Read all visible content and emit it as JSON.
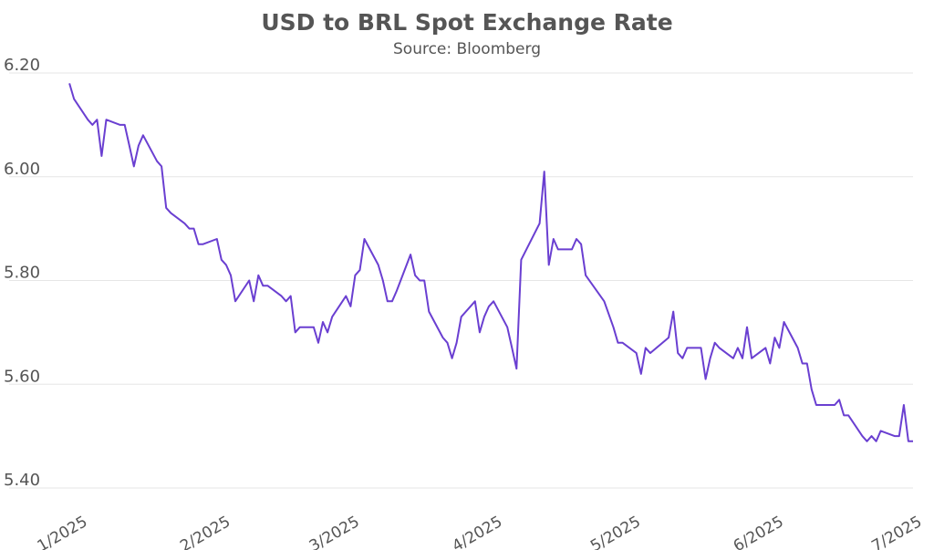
{
  "chart_data": {
    "type": "line",
    "title": "USD to BRL Spot Exchange Rate",
    "subtitle": "Source: Bloomberg",
    "xlabel": "",
    "ylabel": "",
    "ylim": [
      5.4,
      6.2
    ],
    "xlim": [
      "2025-01-01",
      "2025-07-04"
    ],
    "yticks": [
      "6.20",
      "6.00",
      "5.80",
      "5.60",
      "5.40"
    ],
    "xticks": [
      {
        "date": "2025-01-01",
        "label": "1/2025"
      },
      {
        "date": "2025-02-01",
        "label": "2/2025"
      },
      {
        "date": "2025-03-01",
        "label": "3/2025"
      },
      {
        "date": "2025-04-01",
        "label": "4/2025"
      },
      {
        "date": "2025-05-01",
        "label": "5/2025"
      },
      {
        "date": "2025-06-01",
        "label": "6/2025"
      },
      {
        "date": "2025-07-01",
        "label": "7/2025"
      }
    ],
    "grid": "horizontal",
    "line_color": "#6a3fd1",
    "series": [
      {
        "points": [
          [
            "2025-01-02",
            6.18
          ],
          [
            "2025-01-03",
            6.15
          ],
          [
            "2025-01-06",
            6.11
          ],
          [
            "2025-01-07",
            6.1
          ],
          [
            "2025-01-08",
            6.11
          ],
          [
            "2025-01-09",
            6.04
          ],
          [
            "2025-01-10",
            6.11
          ],
          [
            "2025-01-13",
            6.1
          ],
          [
            "2025-01-14",
            6.1
          ],
          [
            "2025-01-15",
            6.06
          ],
          [
            "2025-01-16",
            6.02
          ],
          [
            "2025-01-17",
            6.06
          ],
          [
            "2025-01-18",
            6.08
          ],
          [
            "2025-01-21",
            6.03
          ],
          [
            "2025-01-22",
            6.02
          ],
          [
            "2025-01-23",
            5.94
          ],
          [
            "2025-01-24",
            5.93
          ],
          [
            "2025-01-27",
            5.91
          ],
          [
            "2025-01-28",
            5.9
          ],
          [
            "2025-01-29",
            5.9
          ],
          [
            "2025-01-30",
            5.87
          ],
          [
            "2025-01-31",
            5.87
          ],
          [
            "2025-02-03",
            5.88
          ],
          [
            "2025-02-04",
            5.84
          ],
          [
            "2025-02-05",
            5.83
          ],
          [
            "2025-02-06",
            5.81
          ],
          [
            "2025-02-07",
            5.76
          ],
          [
            "2025-02-10",
            5.8
          ],
          [
            "2025-02-11",
            5.76
          ],
          [
            "2025-02-12",
            5.81
          ],
          [
            "2025-02-13",
            5.79
          ],
          [
            "2025-02-14",
            5.79
          ],
          [
            "2025-02-17",
            5.77
          ],
          [
            "2025-02-18",
            5.76
          ],
          [
            "2025-02-19",
            5.77
          ],
          [
            "2025-02-20",
            5.7
          ],
          [
            "2025-02-21",
            5.71
          ],
          [
            "2025-02-24",
            5.71
          ],
          [
            "2025-02-25",
            5.68
          ],
          [
            "2025-02-26",
            5.72
          ],
          [
            "2025-02-27",
            5.7
          ],
          [
            "2025-02-28",
            5.73
          ],
          [
            "2025-03-03",
            5.77
          ],
          [
            "2025-03-04",
            5.75
          ],
          [
            "2025-03-05",
            5.81
          ],
          [
            "2025-03-06",
            5.82
          ],
          [
            "2025-03-07",
            5.88
          ],
          [
            "2025-03-10",
            5.83
          ],
          [
            "2025-03-11",
            5.8
          ],
          [
            "2025-03-12",
            5.76
          ],
          [
            "2025-03-13",
            5.76
          ],
          [
            "2025-03-14",
            5.78
          ],
          [
            "2025-03-17",
            5.85
          ],
          [
            "2025-03-18",
            5.81
          ],
          [
            "2025-03-19",
            5.8
          ],
          [
            "2025-03-20",
            5.8
          ],
          [
            "2025-03-21",
            5.74
          ],
          [
            "2025-03-24",
            5.69
          ],
          [
            "2025-03-25",
            5.68
          ],
          [
            "2025-03-26",
            5.65
          ],
          [
            "2025-03-27",
            5.68
          ],
          [
            "2025-03-28",
            5.73
          ],
          [
            "2025-03-31",
            5.76
          ],
          [
            "2025-04-01",
            5.7
          ],
          [
            "2025-04-02",
            5.73
          ],
          [
            "2025-04-03",
            5.75
          ],
          [
            "2025-04-04",
            5.76
          ],
          [
            "2025-04-07",
            5.71
          ],
          [
            "2025-04-08",
            5.67
          ],
          [
            "2025-04-09",
            5.63
          ],
          [
            "2025-04-10",
            5.84
          ],
          [
            "2025-04-14",
            5.91
          ],
          [
            "2025-04-15",
            6.01
          ],
          [
            "2025-04-16",
            5.83
          ],
          [
            "2025-04-17",
            5.88
          ],
          [
            "2025-04-18",
            5.86
          ],
          [
            "2025-04-21",
            5.86
          ],
          [
            "2025-04-22",
            5.88
          ],
          [
            "2025-04-23",
            5.87
          ],
          [
            "2025-04-24",
            5.81
          ],
          [
            "2025-04-28",
            5.76
          ],
          [
            "2025-04-30",
            5.71
          ],
          [
            "2025-05-01",
            5.68
          ],
          [
            "2025-05-02",
            5.68
          ],
          [
            "2025-05-05",
            5.66
          ],
          [
            "2025-05-06",
            5.62
          ],
          [
            "2025-05-07",
            5.67
          ],
          [
            "2025-05-08",
            5.66
          ],
          [
            "2025-05-12",
            5.69
          ],
          [
            "2025-05-13",
            5.74
          ],
          [
            "2025-05-14",
            5.66
          ],
          [
            "2025-05-15",
            5.65
          ],
          [
            "2025-05-16",
            5.67
          ],
          [
            "2025-05-19",
            5.67
          ],
          [
            "2025-05-20",
            5.61
          ],
          [
            "2025-05-21",
            5.65
          ],
          [
            "2025-05-22",
            5.68
          ],
          [
            "2025-05-23",
            5.67
          ],
          [
            "2025-05-26",
            5.65
          ],
          [
            "2025-05-27",
            5.67
          ],
          [
            "2025-05-28",
            5.65
          ],
          [
            "2025-05-29",
            5.71
          ],
          [
            "2025-05-30",
            5.65
          ],
          [
            "2025-06-02",
            5.67
          ],
          [
            "2025-06-03",
            5.64
          ],
          [
            "2025-06-04",
            5.69
          ],
          [
            "2025-06-05",
            5.67
          ],
          [
            "2025-06-06",
            5.72
          ],
          [
            "2025-06-09",
            5.67
          ],
          [
            "2025-06-10",
            5.64
          ],
          [
            "2025-06-11",
            5.64
          ],
          [
            "2025-06-12",
            5.59
          ],
          [
            "2025-06-13",
            5.56
          ],
          [
            "2025-06-16",
            5.56
          ],
          [
            "2025-06-17",
            5.56
          ],
          [
            "2025-06-18",
            5.57
          ],
          [
            "2025-06-19",
            5.54
          ],
          [
            "2025-06-20",
            5.54
          ],
          [
            "2025-06-23",
            5.5
          ],
          [
            "2025-06-24",
            5.49
          ],
          [
            "2025-06-25",
            5.5
          ],
          [
            "2025-06-26",
            5.49
          ],
          [
            "2025-06-27",
            5.51
          ],
          [
            "2025-06-30",
            5.5
          ],
          [
            "2025-07-01",
            5.5
          ],
          [
            "2025-07-02",
            5.56
          ],
          [
            "2025-07-03",
            5.49
          ],
          [
            "2025-07-04",
            5.49
          ]
        ]
      }
    ]
  }
}
